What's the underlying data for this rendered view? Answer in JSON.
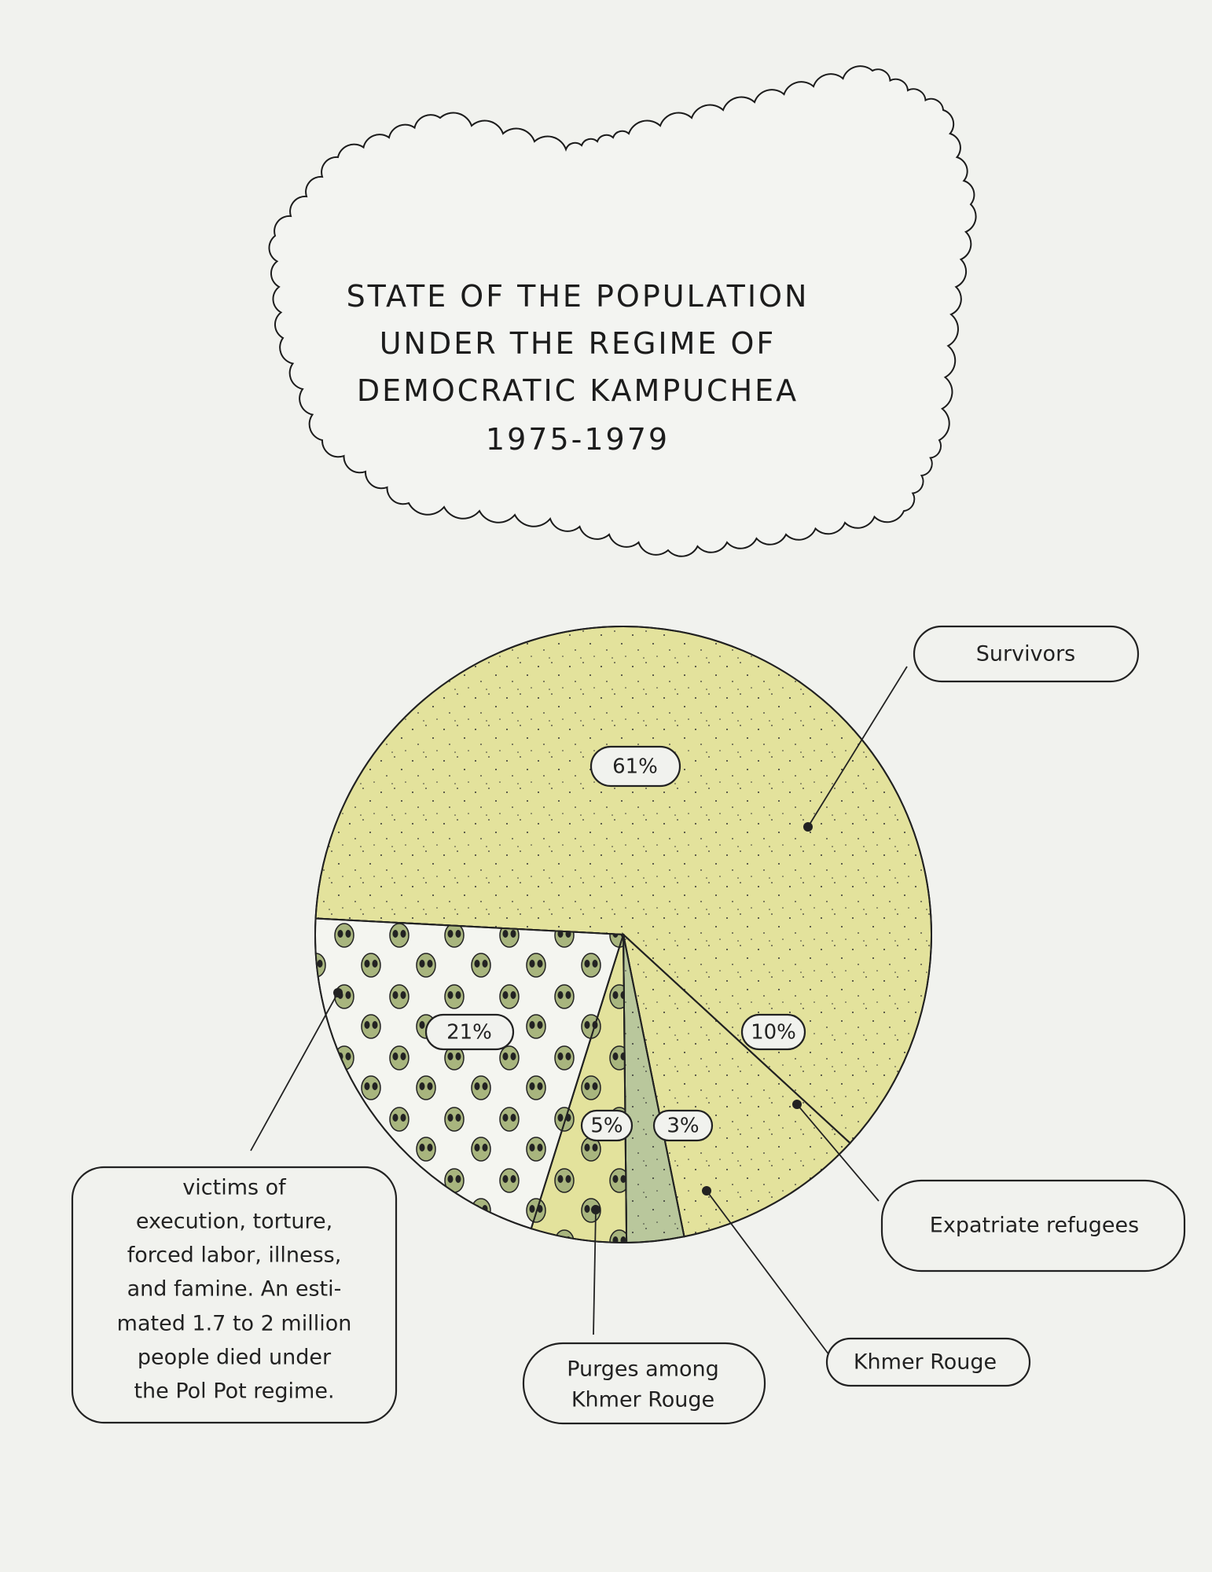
{
  "chart_data": {
    "type": "pie",
    "title_lines": [
      "STATE OF THE POPULATION",
      "UNDER THE REGIME OF",
      "DEMOCRATIC KAMPUCHEA",
      "1975-1979"
    ],
    "slices": [
      {
        "label": "Survivors",
        "value": 61,
        "value_label": "61%",
        "color": "#e3e29c",
        "pattern": "stipple"
      },
      {
        "label": "Expatriate refugees",
        "value": 10,
        "value_label": "10%",
        "color": "#e3e29c",
        "pattern": "stipple"
      },
      {
        "label": "Khmer Rouge",
        "value": 3,
        "value_label": "3%",
        "color": "#b9c79c",
        "pattern": "stipple"
      },
      {
        "label_lines": [
          "Purges among",
          "Khmer Rouge"
        ],
        "value": 5,
        "value_label": "5%",
        "color": "#e3e29c",
        "pattern": "skulls"
      },
      {
        "label_lines": [
          "victims of",
          "execution, torture,",
          "forced labor, illness,",
          "and famine. An esti-",
          "mated 1.7 to 2 million",
          "people died under",
          "the Pol Pot regime."
        ],
        "value": 21,
        "value_label": "21%",
        "color": "#f4f5f0",
        "pattern": "skulls"
      }
    ],
    "direction": "clockwise"
  }
}
